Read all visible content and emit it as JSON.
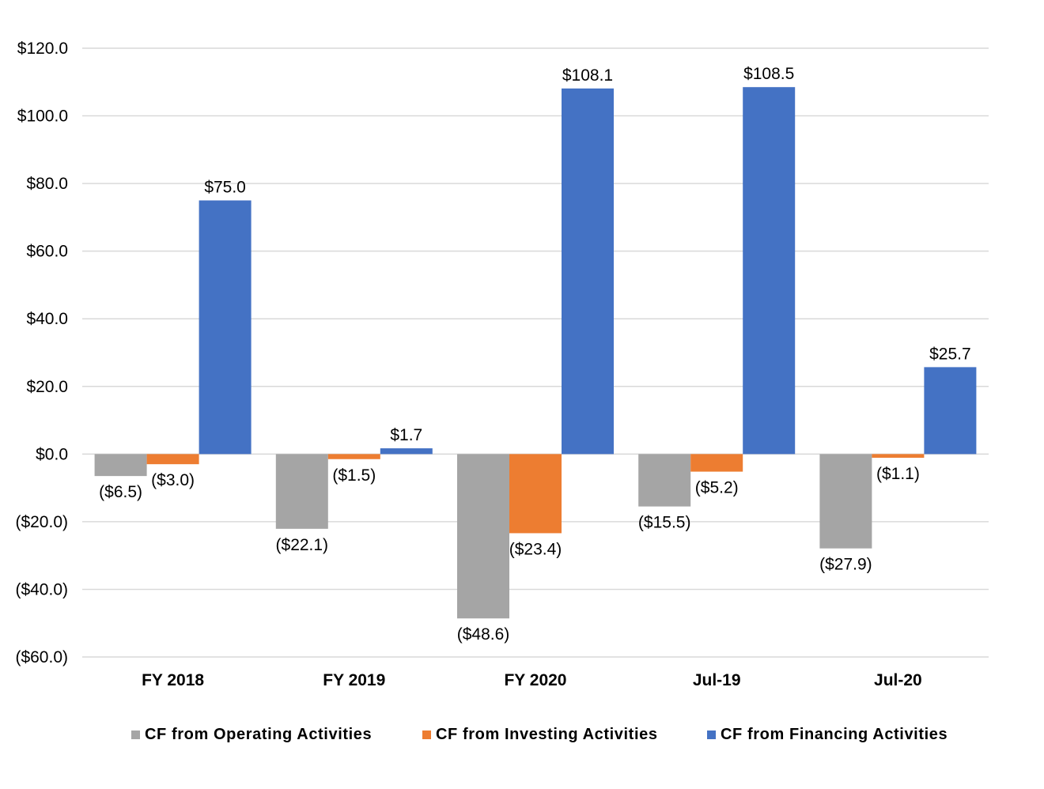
{
  "chart_data": {
    "type": "bar",
    "categories": [
      "FY 2018",
      "FY 2019",
      "FY 2020",
      "Jul-19",
      "Jul-20"
    ],
    "series": [
      {
        "name": "CF from Operating Activities",
        "color": "#a5a5a5",
        "values": [
          -6.5,
          -22.1,
          -48.6,
          -15.5,
          -27.9
        ],
        "labels": [
          "($6.5)",
          "($22.1)",
          "($48.6)",
          "($15.5)",
          "($27.9)"
        ]
      },
      {
        "name": "CF from Investing Activities",
        "color": "#ed7d31",
        "values": [
          -3.0,
          -1.5,
          -23.4,
          -5.2,
          -1.1
        ],
        "labels": [
          "($3.0)",
          "($1.5)",
          "($23.4)",
          "($5.2)",
          "($1.1)"
        ]
      },
      {
        "name": "CF from Financing Activities",
        "color": "#4472c4",
        "values": [
          75.0,
          1.7,
          108.1,
          108.5,
          25.7
        ],
        "labels": [
          "$75.0",
          "$1.7",
          "$108.1",
          "$108.5",
          "$25.7"
        ]
      }
    ],
    "ylim": [
      -60,
      120
    ],
    "yticks": [
      120,
      100,
      80,
      60,
      40,
      20,
      0,
      -20,
      -40,
      -60
    ],
    "ytick_labels": [
      "$120.0",
      "$100.0",
      "$80.0",
      "$60.0",
      "$40.0",
      "$20.0",
      "$0.0",
      "($20.0)",
      "($40.0)",
      "($60.0)"
    ],
    "grid": true,
    "legend_position": "bottom",
    "title": "",
    "xlabel": "",
    "ylabel": ""
  }
}
